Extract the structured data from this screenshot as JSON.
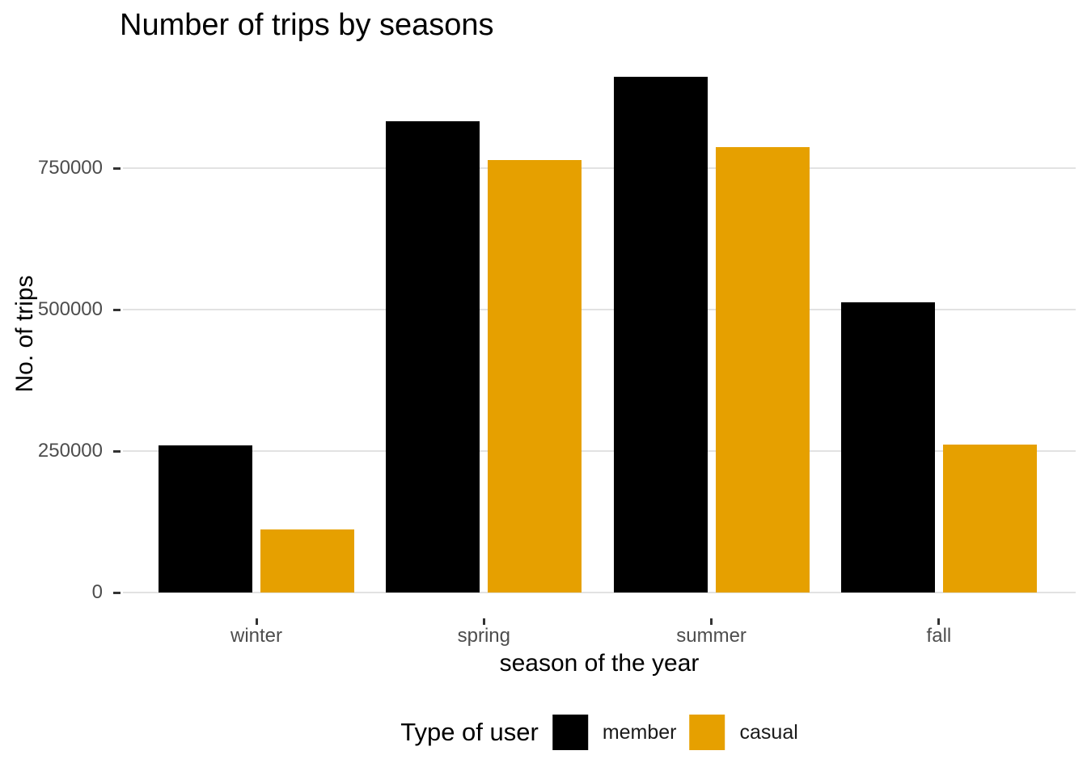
{
  "title": "Number of trips by seasons",
  "axes": {
    "x": {
      "title": "season of the year",
      "categories": [
        "winter",
        "spring",
        "summer",
        "fall"
      ]
    },
    "y": {
      "title": "No. of trips",
      "tick_labels": [
        "0",
        "250000",
        "500000",
        "750000"
      ]
    }
  },
  "legend": {
    "title": "Type of user",
    "items": [
      {
        "label": "member",
        "color": "#000000"
      },
      {
        "label": "casual",
        "color": "#E6A000"
      }
    ]
  },
  "colors": {
    "member": "#000000",
    "casual": "#E6A000",
    "gridline": "#E2E2E2",
    "tick": "#333333",
    "tick_label": "#4D4D4D",
    "background": "#FFFFFF"
  },
  "chart_data": {
    "type": "bar",
    "title": "Number of trips by seasons",
    "xlabel": "season of the year",
    "ylabel": "No. of trips",
    "categories": [
      "winter",
      "spring",
      "summer",
      "fall"
    ],
    "series": [
      {
        "name": "member",
        "color": "#000000",
        "values": [
          260000,
          833000,
          912000,
          513000
        ]
      },
      {
        "name": "casual",
        "color": "#E6A000",
        "values": [
          111000,
          764000,
          787000,
          261000
        ]
      }
    ],
    "yticks": [
      0,
      250000,
      500000,
      750000
    ],
    "ylim": [
      0,
      958000
    ],
    "grid": "horizontal-major",
    "group_mode": "dodge",
    "bar_orientation": "vertical",
    "legend_position": "bottom"
  }
}
